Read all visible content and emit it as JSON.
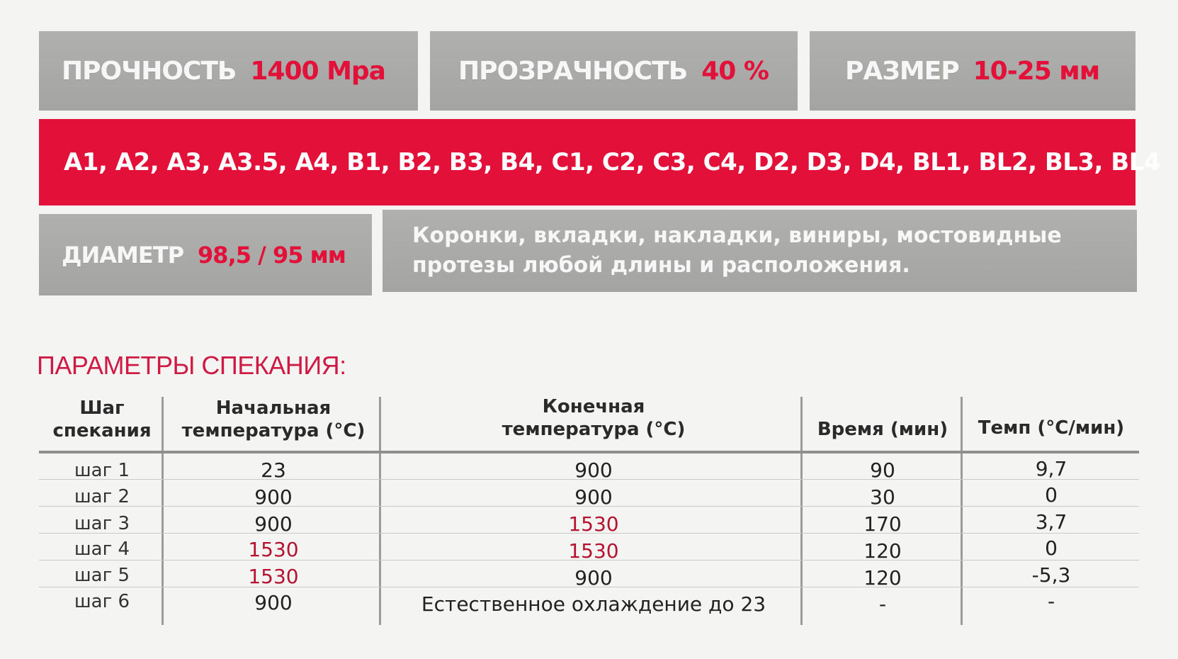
{
  "specs": {
    "strength": {
      "label": "ПРОЧНОСТЬ",
      "value": "1400 Mpa"
    },
    "translucency": {
      "label": "ПРОЗРАЧНОСТЬ",
      "value": "40 %"
    },
    "size": {
      "label": "РАЗМЕР",
      "value": "10-25 мм"
    },
    "diameter": {
      "label": "ДИАМЕТР",
      "value": "98,5 / 95 мм"
    }
  },
  "shades": "A1, A2, A3, A3.5, A4, B1, B2, B3, B4, C1, C2, C3, C4, D2, D3, D4, BL1, BL2, BL3, BL4",
  "indications": {
    "line1": "Коронки, вкладки, накладки, виниры, мостовидные",
    "line2": "протезы любой длины и расположения."
  },
  "sintering": {
    "title": "ПАРАМЕТРЫ СПЕКАНИЯ:",
    "headers": {
      "step": {
        "line1": "Шаг",
        "line2": "спекания"
      },
      "start": {
        "line1": "Начальная",
        "line2": "температура (°C)"
      },
      "end": {
        "line1": "Конечная",
        "line2": "температура (°C)"
      },
      "time": "Время (мин)",
      "rate": "Темп (°C/мин)"
    },
    "rows": [
      {
        "step": "шаг 1",
        "start": "23",
        "end": "900",
        "time": "90",
        "rate": "9,7"
      },
      {
        "step": "шаг 2",
        "start": "900",
        "end": "900",
        "time": "30",
        "rate": "0"
      },
      {
        "step": "шаг 3",
        "start": "900",
        "end": "1530",
        "time": "170",
        "rate": "3,7"
      },
      {
        "step": "шаг 4",
        "start": "1530",
        "end": "1530",
        "time": "120",
        "rate": "0"
      },
      {
        "step": "шаг 5",
        "start": "1530",
        "end": "900",
        "time": "120",
        "rate": "-5,3"
      },
      {
        "step": "шаг 6",
        "start": "900",
        "end": "Естественное охлаждение до 23",
        "time": "-",
        "rate": "-"
      }
    ]
  },
  "colors": {
    "accent": "#e3103a",
    "panel_gray": "#a8a8a6",
    "highlight_value": "#b5122f"
  }
}
